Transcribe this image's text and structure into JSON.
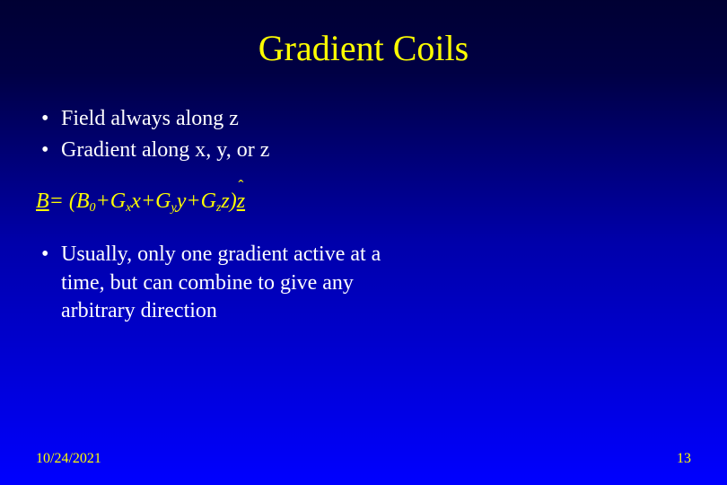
{
  "slide": {
    "title": "Gradient Coils",
    "title_color": "#ffff00",
    "title_fontsize": 40,
    "background_gradient": [
      "#000033",
      "#000044",
      "#0000aa",
      "#0000ff"
    ],
    "bullet_color": "#ffffff",
    "bullet_fontsize": 24,
    "bullets_top": [
      "Field always along z",
      "Gradient along x, y, or z"
    ],
    "equation": {
      "text": "B = (B0 + Gx x + Gy y + Gz z) ẑ",
      "B": "B",
      "eq": " = (",
      "B0": "B",
      "sub0": "0",
      "plus1": " + ",
      "Gx": "G",
      "subx": "x",
      "x": "x",
      "plus2": " + ",
      "Gy": "G",
      "suby": "y",
      "y": "y",
      "plus3": " + ",
      "Gz": "G",
      "subz": "z",
      "z": "z",
      "close": ")",
      "zhat": "z",
      "color": "#ffff00",
      "fontsize": 24
    },
    "bullets_bottom": [
      "Usually, only one gradient active at a time, but can combine to give any arbitrary direction"
    ],
    "footer": {
      "date": "10/24/2021",
      "page": "13",
      "color": "#ffff00",
      "fontsize": 16
    }
  }
}
